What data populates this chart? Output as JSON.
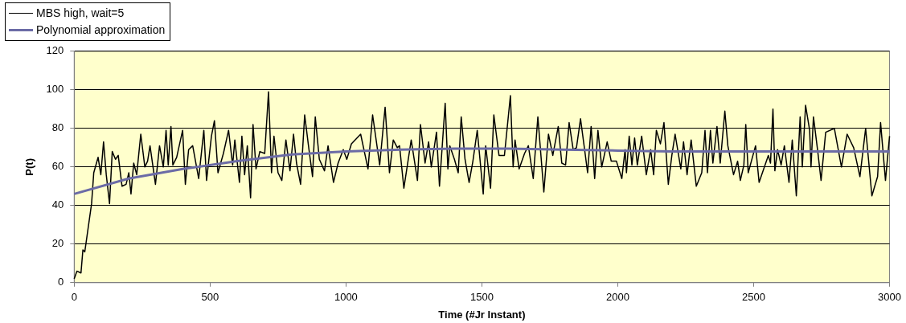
{
  "chart_data": {
    "type": "line",
    "xlabel": "Time (#Jr Instant)",
    "ylabel": "P(t)",
    "xlim": [
      0,
      3000
    ],
    "xticks": [
      0,
      500,
      1000,
      1500,
      2000,
      2500,
      3000
    ],
    "ylim": [
      0,
      120
    ],
    "yticks": [
      0,
      20,
      40,
      60,
      80,
      100,
      120
    ],
    "grid": "y",
    "legend": "top left",
    "marker": "none",
    "line_style": "solid",
    "series": [
      {
        "name": "MBS high, wait=5",
        "color": "#000000",
        "x": [
          0,
          10,
          25,
          32,
          39,
          49,
          64,
          72,
          88,
          98,
          108,
          118,
          130,
          140,
          152,
          162,
          176,
          191,
          201,
          209,
          219,
          230,
          245,
          260,
          270,
          279,
          289,
          299,
          314,
          328,
          338,
          346,
          356,
          363,
          377,
          399,
          409,
          421,
          436,
          458,
          477,
          487,
          505,
          516,
          529,
          549,
          568,
          583,
          591,
          608,
          617,
          627,
          637,
          649,
          658,
          669,
          683,
          701,
          715,
          726,
          735,
          750,
          764,
          779,
          794,
          807,
          818,
          833,
          848,
          862,
          877,
          887,
          902,
          921,
          934,
          954,
          971,
          990,
          1003,
          1020,
          1054,
          1081,
          1098,
          1124,
          1144,
          1160,
          1174,
          1189,
          1197,
          1213,
          1240,
          1263,
          1274,
          1291,
          1304,
          1314,
          1333,
          1344,
          1365,
          1375,
          1382,
          1399,
          1413,
          1424,
          1438,
          1453,
          1467,
          1483,
          1505,
          1514,
          1532,
          1544,
          1563,
          1583,
          1605,
          1615,
          1622,
          1637,
          1657,
          1671,
          1689,
          1706,
          1728,
          1745,
          1761,
          1781,
          1794,
          1808,
          1821,
          1836,
          1848,
          1863,
          1878,
          1889,
          1902,
          1915,
          1927,
          1941,
          1961,
          1976,
          1995,
          2015,
          2027,
          2032,
          2042,
          2052,
          2062,
          2072,
          2088,
          2105,
          2121,
          2132,
          2142,
          2157,
          2170,
          2186,
          2199,
          2211,
          2232,
          2242,
          2255,
          2270,
          2289,
          2309,
          2321,
          2330,
          2341,
          2350,
          2365,
          2377,
          2394,
          2405,
          2426,
          2441,
          2451,
          2464,
          2471,
          2480,
          2507,
          2520,
          2554,
          2562,
          2571,
          2578,
          2588,
          2601,
          2613,
          2630,
          2642,
          2657,
          2671,
          2679,
          2691,
          2706,
          2711,
          2720,
          2735,
          2748,
          2765,
          2797,
          2823,
          2844,
          2868,
          2891,
          2912,
          2935,
          2956,
          2967,
          2985,
          3000
        ],
        "values": [
          2,
          6,
          5,
          17,
          16,
          26,
          41,
          57,
          65,
          56,
          73,
          56,
          41,
          68,
          64,
          66,
          50,
          51,
          57,
          46,
          62,
          56,
          77,
          60,
          63,
          71,
          61,
          51,
          71,
          60,
          79,
          61,
          81,
          61,
          65,
          79,
          51,
          69,
          71,
          54,
          79,
          53,
          76,
          84,
          57,
          67,
          79,
          61,
          74,
          52,
          76,
          56,
          71,
          44,
          82,
          59,
          68,
          67,
          99,
          57,
          76,
          57,
          53,
          74,
          58,
          77,
          62,
          51,
          87,
          71,
          55,
          86,
          64,
          58,
          71,
          52,
          62,
          69,
          64,
          72,
          77,
          59,
          87,
          61,
          91,
          57,
          74,
          70,
          71,
          49,
          74,
          53,
          82,
          62,
          73,
          60,
          78,
          50,
          93,
          59,
          71,
          64,
          57,
          86,
          64,
          52,
          63,
          79,
          46,
          71,
          49,
          87,
          66,
          66,
          97,
          60,
          74,
          59,
          67,
          71,
          54,
          86,
          47,
          77,
          66,
          81,
          62,
          61,
          83,
          69,
          70,
          85,
          69,
          57,
          81,
          54,
          79,
          60,
          73,
          63,
          63,
          54,
          69,
          57,
          76,
          61,
          75,
          61,
          76,
          56,
          69,
          56,
          79,
          72,
          83,
          51,
          66,
          77,
          59,
          73,
          56,
          74,
          50,
          57,
          79,
          57,
          79,
          62,
          81,
          62,
          89,
          71,
          56,
          63,
          53,
          61,
          82,
          57,
          71,
          52,
          66,
          62,
          90,
          58,
          69,
          61,
          71,
          52,
          74,
          45,
          86,
          60,
          92,
          79,
          60,
          86,
          69,
          53,
          78,
          80,
          60,
          77,
          70,
          55,
          80,
          45,
          55,
          83,
          53,
          76
        ]
      },
      {
        "name": "Polynomial approximation",
        "color": "#6b6ba6",
        "x": [
          0,
          200,
          400,
          600,
          800,
          1000,
          1200,
          1400,
          1600,
          1800,
          2000,
          2200,
          2400,
          2600,
          2800,
          3000
        ],
        "values": [
          46,
          54,
          59,
          63,
          66.5,
          68,
          69,
          69.5,
          69.5,
          69,
          68.5,
          68,
          68,
          68,
          68,
          68
        ]
      }
    ]
  }
}
